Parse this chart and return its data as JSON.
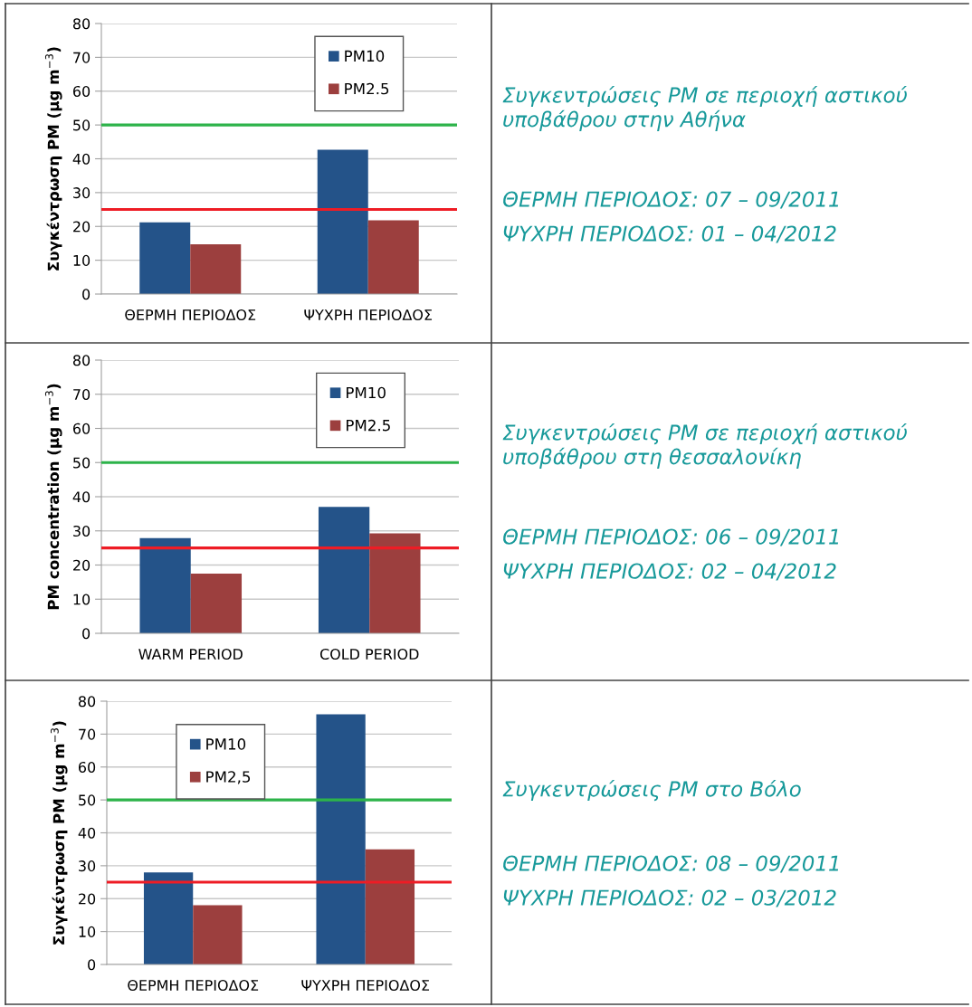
{
  "chart_data": [
    {
      "type": "bar",
      "ylabel": "Συγκέντρωση PM (μg m$^{−3}$)",
      "categories": [
        "ΘΕΡΜΗ ΠΕΡΙΟΔΟΣ",
        "ΨΥΧΡΗ ΠΕΡΙΟΔΟΣ"
      ],
      "series": [
        {
          "name": "PM10",
          "color": "#245389",
          "values": [
            21.2,
            42.7
          ]
        },
        {
          "name": "PM2.5",
          "color": "#9c3f3e",
          "values": [
            14.7,
            21.8
          ]
        }
      ],
      "ylim": [
        0,
        80
      ],
      "yticks": [
        0,
        10,
        20,
        30,
        40,
        50,
        60,
        70,
        80
      ],
      "grid": "y",
      "legend": "top right",
      "ref_lines": [
        {
          "axis": "y",
          "value": 50,
          "color": "#2db34a"
        },
        {
          "axis": "y",
          "value": 25,
          "color": "#ee1c25"
        }
      ]
    },
    {
      "type": "other",
      "annotations": [
        "Συγκεντρώσεις PM σε περιοχή αστικού υποβάθρου στην Αθήνα",
        "ΘΕΡΜΗ ΠΕΡΙΟΔΟΣ: 07 – 09/2011",
        "ΨΥΧΡΗ ΠΕΡΙΟΔΟΣ: 01 – 04/2012"
      ]
    },
    {
      "type": "bar",
      "ylabel": "PM concentration (μg m$^{−3}$)",
      "categories": [
        "WARM PERIOD",
        "COLD PERIOD"
      ],
      "series": [
        {
          "name": "PM10",
          "color": "#245389",
          "values": [
            27.9,
            37.0
          ]
        },
        {
          "name": "PM2.5",
          "color": "#9c3f3e",
          "values": [
            17.5,
            29.3
          ]
        }
      ],
      "ylim": [
        0,
        80
      ],
      "yticks": [
        0,
        10,
        20,
        30,
        40,
        50,
        60,
        70,
        80
      ],
      "grid": "y",
      "legend": "top right",
      "ref_lines": [
        {
          "axis": "y",
          "value": 50,
          "color": "#2db34a"
        },
        {
          "axis": "y",
          "value": 25,
          "color": "#ee1c25"
        }
      ]
    },
    {
      "type": "other",
      "annotations": [
        "Συγκεντρώσεις PM σε περιοχή αστικού υποβάθρου στη θεσσαλονίκη",
        "ΘΕΡΜΗ ΠΕΡΙΟΔΟΣ: 06 – 09/2011",
        "ΨΥΧΡΗ ΠΕΡΙΟΔΟΣ: 02 – 04/2012"
      ]
    },
    {
      "type": "bar",
      "ylabel": "Συγκέντρωση PM (μg m$^{−3}$)",
      "categories": [
        "ΘΕΡΜΗ ΠΕΡΙΟΔΟΣ",
        "ΨΥΧΡΗ ΠΕΡΙΟΔΟΣ"
      ],
      "series": [
        {
          "name": "PM10",
          "color": "#245389",
          "values": [
            28.0,
            76.0
          ]
        },
        {
          "name": "PM2,5",
          "color": "#9c3f3e",
          "values": [
            18.0,
            35.0
          ]
        }
      ],
      "ylim": [
        0,
        80
      ],
      "yticks": [
        0,
        10,
        20,
        30,
        40,
        50,
        60,
        70,
        80
      ],
      "grid": "y",
      "legend": "top left",
      "ref_lines": [
        {
          "axis": "y",
          "value": 50,
          "color": "#2db34a"
        },
        {
          "axis": "y",
          "value": 25,
          "color": "#ee1c25"
        }
      ]
    },
    {
      "type": "other",
      "annotations": [
        "Συγκεντρώσεις PM στο Βόλο",
        "ΘΕΡΜΗ ΠΕΡΙΟΔΟΣ: 08 – 09/2011",
        "ΨΥΧΡΗ ΠΕΡΙΟΔΟΣ: 02 – 03/2012"
      ]
    }
  ]
}
